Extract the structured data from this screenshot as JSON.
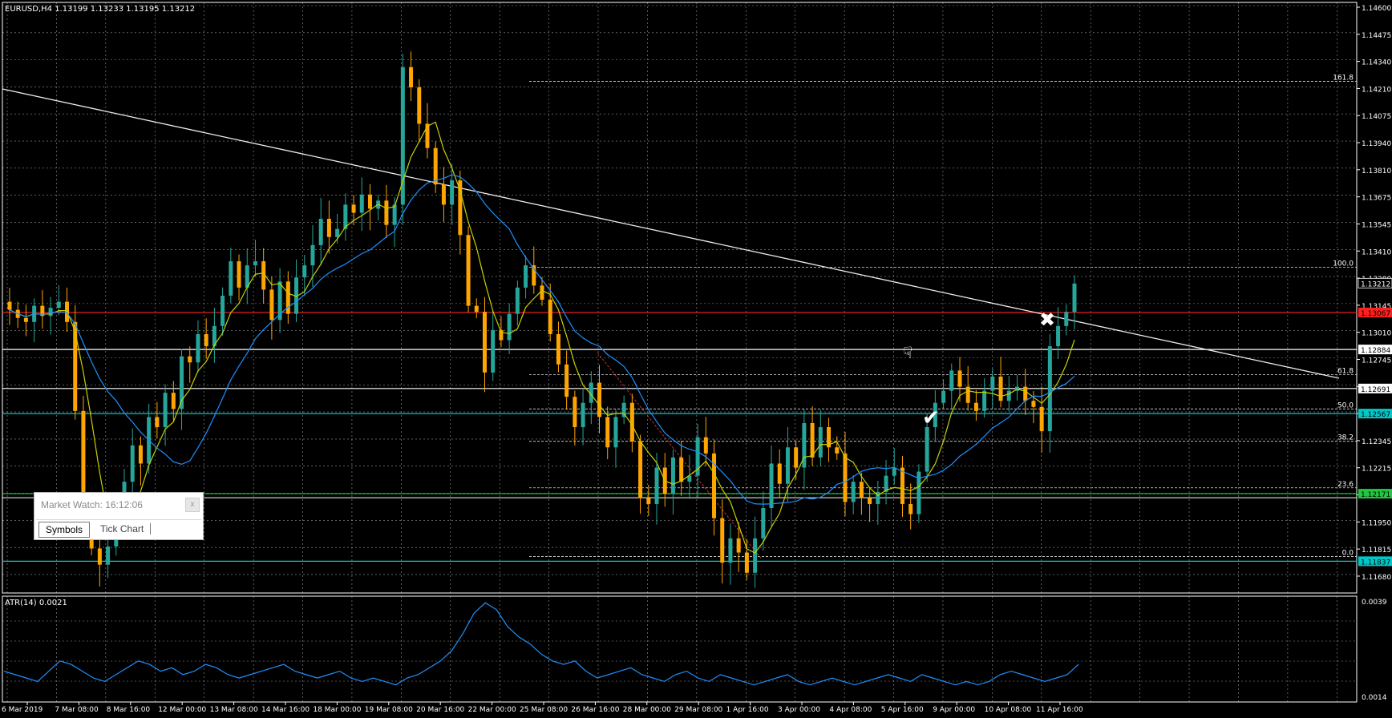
{
  "window": {
    "symbol_header": "EURUSD,H4  1.13199 1.13233 1.13195 1.13212"
  },
  "indicator": {
    "label": "ATR(14) 0.0021",
    "scale": [
      "0.0039",
      "0.0014"
    ]
  },
  "market_watch": {
    "title": "Market Watch: 16:12:06",
    "close_glyph": "x",
    "tabs": [
      "Symbols",
      "Tick Chart"
    ]
  },
  "price_scale": {
    "labels": [
      "1.14600",
      "1.14475",
      "1.14340",
      "1.14210",
      "1.14075",
      "1.13940",
      "1.13810",
      "1.13675",
      "1.13545",
      "1.13410",
      "1.13280",
      "1.13145",
      "1.13010",
      "1.12745",
      "1.12615",
      "1.12480",
      "1.12345",
      "1.12215",
      "1.12080",
      "1.11950",
      "1.11815",
      "1.11680"
    ],
    "tags": [
      {
        "text": "1.13212",
        "kind": "bid"
      },
      {
        "text": "1.13067",
        "kind": "red-level"
      },
      {
        "text": "1.12884",
        "kind": "white-level"
      },
      {
        "text": "1.12691",
        "kind": "white-level"
      },
      {
        "text": "1.12567",
        "kind": "cyan-level"
      },
      {
        "text": "1.12171",
        "kind": "green-level"
      },
      {
        "text": "1.11837",
        "kind": "cyan-level"
      }
    ]
  },
  "fibonacci": [
    "161.8",
    "100.0",
    "61.8",
    "50.0",
    "38.2",
    "23.6",
    "0.0"
  ],
  "time_axis": [
    "6 Mar 2019",
    "7 Mar 08:00",
    "8 Mar 16:00",
    "12 Mar 00:00",
    "13 Mar 08:00",
    "14 Mar 16:00",
    "18 Mar 00:00",
    "19 Mar 08:00",
    "20 Mar 16:00",
    "22 Mar 00:00",
    "25 Mar 08:00",
    "26 Mar 16:00",
    "28 Mar 00:00",
    "29 Mar 08:00",
    "1 Apr 16:00",
    "3 Apr 00:00",
    "4 Apr 08:00",
    "5 Apr 16:00",
    "9 Apr 00:00",
    "10 Apr 08:00",
    "11 Apr 16:00"
  ],
  "colors": {
    "background": "#000000",
    "grid": "#c8c8c8",
    "bull_candle": "#26a69a",
    "bear_candle": "#ffa500",
    "ma_fast": "#c8d000",
    "ma_slow": "#1e90ff",
    "atr_line": "#1e90ff",
    "red_level": "#ff2020",
    "cyan_level": "#00c8c8",
    "green_level": "#20c840"
  },
  "chart_data": {
    "type": "candlestick",
    "title": "EURUSD,H4",
    "ohlc_header": [
      1.13199,
      1.13233,
      1.13195,
      1.13212
    ],
    "ylim": [
      1.1168,
      1.146
    ],
    "fib_levels": {
      "161.8": 1.1421,
      "100.0": 1.1329,
      "61.8": 1.1276,
      "50.0": 1.1259,
      "38.2": 1.1243,
      "23.6": 1.122,
      "0.0": 1.1186
    },
    "horizontal_levels": [
      1.13212,
      1.13067,
      1.12884,
      1.12691,
      1.12567,
      1.12171,
      1.11837
    ],
    "closes": [
      1.1308,
      1.1304,
      1.1302,
      1.131,
      1.1305,
      1.1309,
      1.1312,
      1.1302,
      1.1258,
      1.1205,
      1.119,
      1.1182,
      1.1191,
      1.1205,
      1.1223,
      1.1241,
      1.1232,
      1.1255,
      1.125,
      1.1267,
      1.1259,
      1.1285,
      1.1282,
      1.1296,
      1.129,
      1.13,
      1.1315,
      1.1332,
      1.1319,
      1.133,
      1.1332,
      1.1318,
      1.1303,
      1.1322,
      1.1306,
      1.1324,
      1.133,
      1.134,
      1.1353,
      1.1344,
      1.1348,
      1.136,
      1.1356,
      1.1365,
      1.1358,
      1.1362,
      1.135,
      1.136,
      1.1428,
      1.1418,
      1.14,
      1.1388,
      1.137,
      1.136,
      1.1372,
      1.1345,
      1.131,
      1.1307,
      1.1277,
      1.1298,
      1.1293,
      1.1306,
      1.1319,
      1.133,
      1.132,
      1.1313,
      1.1296,
      1.1281,
      1.1265,
      1.125,
      1.1262,
      1.1272,
      1.1255,
      1.124,
      1.1255,
      1.1262,
      1.1243,
      1.1215,
      1.1212,
      1.123,
      1.1217,
      1.1235,
      1.1223,
      1.1226,
      1.1245,
      1.1237,
      1.1205,
      1.1183,
      1.1195,
      1.1188,
      1.1178,
      1.1195,
      1.121,
      1.1232,
      1.1222,
      1.124,
      1.123,
      1.1252,
      1.1235,
      1.125,
      1.124,
      1.1237,
      1.1213,
      1.1223,
      1.1215,
      1.1212,
      1.1218,
      1.1226,
      1.123,
      1.1212,
      1.1207,
      1.1228,
      1.125,
      1.1262,
      1.1268,
      1.1278,
      1.127,
      1.1262,
      1.1258,
      1.1268,
      1.1275,
      1.1263,
      1.1268,
      1.127,
      1.1263,
      1.126,
      1.1248,
      1.129,
      1.13,
      1.1307,
      1.1321
    ],
    "atr_values": [
      0.0019,
      0.0018,
      0.0017,
      0.0016,
      0.0019,
      0.0022,
      0.0021,
      0.0019,
      0.0017,
      0.0016,
      0.0018,
      0.002,
      0.0022,
      0.0021,
      0.0019,
      0.002,
      0.0018,
      0.0019,
      0.0021,
      0.002,
      0.0018,
      0.0017,
      0.0018,
      0.0019,
      0.002,
      0.0021,
      0.0019,
      0.0018,
      0.0017,
      0.0018,
      0.0019,
      0.0017,
      0.0016,
      0.0017,
      0.0016,
      0.0015,
      0.0017,
      0.0018,
      0.002,
      0.0022,
      0.0025,
      0.003,
      0.0036,
      0.0039,
      0.0037,
      0.0032,
      0.0029,
      0.0027,
      0.0024,
      0.0022,
      0.0021,
      0.0022,
      0.0019,
      0.0017,
      0.0018,
      0.0019,
      0.002,
      0.0018,
      0.0017,
      0.0016,
      0.0018,
      0.0019,
      0.0017,
      0.0016,
      0.0018,
      0.0017,
      0.0016,
      0.0015,
      0.0016,
      0.0017,
      0.0018,
      0.0016,
      0.0015,
      0.0016,
      0.0017,
      0.0016,
      0.0015,
      0.0016,
      0.0017,
      0.0018,
      0.0017,
      0.0016,
      0.0018,
      0.0017,
      0.0016,
      0.0015,
      0.0016,
      0.0015,
      0.0016,
      0.0018,
      0.0019,
      0.0018,
      0.0017,
      0.0016,
      0.0017,
      0.0018,
      0.0021
    ]
  }
}
